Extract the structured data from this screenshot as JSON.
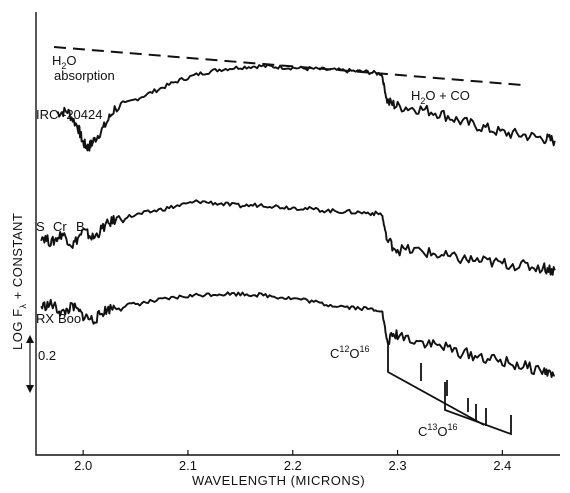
{
  "chart_data": {
    "type": "line",
    "xlabel": "WAVELENGTH   (MICRONS)",
    "ylabel": "LOG  Fλ  +  CONSTANT",
    "xticks": [
      "2.0",
      "2.1",
      "2.2",
      "2.3",
      "2.4"
    ],
    "xlim": [
      1.955,
      2.455
    ],
    "series": [
      {
        "name": "IRC -20424",
        "label_parts": [
          "IRC -20424"
        ],
        "x": [
          1.975,
          1.985,
          1.995,
          2.0,
          2.005,
          2.01,
          2.02,
          2.03,
          2.05,
          2.07,
          2.09,
          2.11,
          2.13,
          2.15,
          2.17,
          2.19,
          2.21,
          2.23,
          2.25,
          2.27,
          2.285,
          2.29,
          2.3,
          2.32,
          2.34,
          2.36,
          2.38,
          2.4,
          2.42,
          2.44,
          2.45
        ],
        "y": [
          0.32,
          0.34,
          0.2,
          0.06,
          0.02,
          0.08,
          0.2,
          0.36,
          0.44,
          0.52,
          0.6,
          0.66,
          0.7,
          0.72,
          0.73,
          0.72,
          0.71,
          0.7,
          0.69,
          0.68,
          0.66,
          0.42,
          0.38,
          0.36,
          0.32,
          0.25,
          0.2,
          0.15,
          0.13,
          0.1,
          0.08
        ]
      },
      {
        "name": "S Cr B",
        "label_parts": [
          "S",
          "Cr",
          "B"
        ],
        "x": [
          1.96,
          1.97,
          1.98,
          1.99,
          2.0,
          2.01,
          2.02,
          2.03,
          2.05,
          2.07,
          2.09,
          2.11,
          2.13,
          2.15,
          2.17,
          2.19,
          2.21,
          2.23,
          2.25,
          2.27,
          2.285,
          2.29,
          2.3,
          2.32,
          2.34,
          2.36,
          2.38,
          2.4,
          2.42,
          2.44,
          2.45
        ],
        "y": [
          0.08,
          0.02,
          0.1,
          0.0,
          0.12,
          0.06,
          0.16,
          0.22,
          0.26,
          0.3,
          0.34,
          0.38,
          0.36,
          0.34,
          0.35,
          0.33,
          0.32,
          0.3,
          0.29,
          0.28,
          0.27,
          0.04,
          -0.04,
          -0.05,
          -0.09,
          -0.12,
          -0.14,
          -0.16,
          -0.18,
          -0.2,
          -0.22
        ]
      },
      {
        "name": "RX Boo",
        "label_parts": [
          "RX",
          "Boo"
        ],
        "x": [
          1.96,
          1.97,
          1.98,
          1.99,
          2.0,
          2.01,
          2.02,
          2.03,
          2.05,
          2.07,
          2.09,
          2.11,
          2.13,
          2.15,
          2.17,
          2.19,
          2.21,
          2.23,
          2.25,
          2.27,
          2.285,
          2.29,
          2.3,
          2.32,
          2.34,
          2.36,
          2.38,
          2.4,
          2.42,
          2.44,
          2.45
        ],
        "y": [
          0.1,
          0.12,
          0.04,
          0.1,
          0.02,
          -0.02,
          0.06,
          0.1,
          0.12,
          0.15,
          0.18,
          0.2,
          0.21,
          0.21,
          0.2,
          0.18,
          0.16,
          0.12,
          0.1,
          0.08,
          0.07,
          -0.2,
          -0.14,
          -0.2,
          -0.24,
          -0.3,
          -0.34,
          -0.38,
          -0.42,
          -0.46,
          -0.5
        ]
      }
    ],
    "annotations": {
      "h2o_absorption": [
        "H2O",
        "absorption"
      ],
      "h2o_co": "H2O  +  CO",
      "c12o16": "C12O16",
      "c13o16": "C13O16",
      "scale_bar": "0.2"
    }
  }
}
